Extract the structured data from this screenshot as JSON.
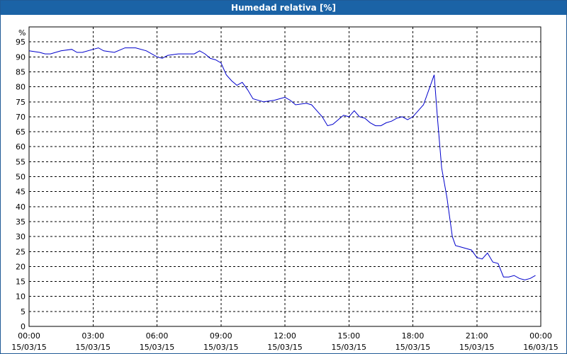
{
  "chart_data": {
    "type": "line",
    "title": "Humedad relativa [%]",
    "y_unit_label": "%",
    "ylim": [
      0,
      100
    ],
    "y_ticks": [
      0,
      5,
      10,
      15,
      20,
      25,
      30,
      35,
      40,
      45,
      50,
      55,
      60,
      65,
      70,
      75,
      80,
      85,
      90,
      95
    ],
    "x_ticks": [
      {
        "time": "00:00",
        "date": "15/03/15"
      },
      {
        "time": "03:00",
        "date": "15/03/15"
      },
      {
        "time": "06:00",
        "date": "15/03/15"
      },
      {
        "time": "09:00",
        "date": "15/03/15"
      },
      {
        "time": "12:00",
        "date": "15/03/15"
      },
      {
        "time": "15:00",
        "date": "15/03/15"
      },
      {
        "time": "18:00",
        "date": "15/03/15"
      },
      {
        "time": "21:00",
        "date": "15/03/15"
      },
      {
        "time": "00:00",
        "date": "16/03/15"
      }
    ],
    "xlim_hours": [
      0,
      24
    ],
    "grid": true,
    "line_color": "#0000cc",
    "series": [
      {
        "x_hours": [
          0,
          0.5,
          0.75,
          1.0,
          1.5,
          2.0,
          2.25,
          2.5,
          3.0,
          3.25,
          3.5,
          4.0,
          4.5,
          5.0,
          5.5,
          6.0,
          6.25,
          6.5,
          7.0,
          7.5,
          7.75,
          8.0,
          8.25,
          8.5,
          8.75,
          9.0,
          9.25,
          9.5,
          9.75,
          10.0,
          10.25,
          10.5,
          11.0,
          11.5,
          11.75,
          12.0,
          12.25,
          12.5,
          13.0,
          13.25,
          13.5,
          13.75,
          14.0,
          14.25,
          14.5,
          14.75,
          15.0,
          15.25,
          15.5,
          15.75,
          16.0,
          16.25,
          16.5,
          16.75,
          17.0,
          17.25,
          17.5,
          17.75,
          18.0,
          18.25,
          18.5,
          18.75,
          19.0,
          19.15,
          19.35,
          19.6,
          19.85,
          20.0,
          20.25,
          20.5,
          20.75,
          21.0,
          21.25,
          21.5,
          21.75,
          22.0,
          22.25,
          22.5,
          22.75,
          23.0,
          23.25,
          23.5,
          23.75
        ],
        "y": [
          92,
          91.5,
          91,
          91,
          92,
          92.5,
          91.5,
          91.5,
          92.5,
          93,
          92,
          91.5,
          93,
          93,
          92,
          90,
          89.5,
          90.5,
          91,
          91,
          91,
          92,
          91,
          89.5,
          89,
          88,
          84,
          82,
          80.5,
          81.5,
          79,
          76,
          75,
          75.5,
          76,
          76.5,
          75.5,
          74,
          74.5,
          74,
          72,
          70,
          67,
          67.5,
          69,
          70.5,
          70,
          72,
          70,
          69.5,
          68,
          67,
          67,
          68,
          68.5,
          69.5,
          70,
          69,
          70,
          72,
          74,
          79,
          84,
          70,
          53,
          43,
          30,
          27,
          26.5,
          26,
          25.5,
          23,
          22.5,
          24.5,
          21.5,
          21,
          16.5,
          16.5,
          17,
          16,
          15.5,
          16,
          17
        ]
      }
    ]
  }
}
